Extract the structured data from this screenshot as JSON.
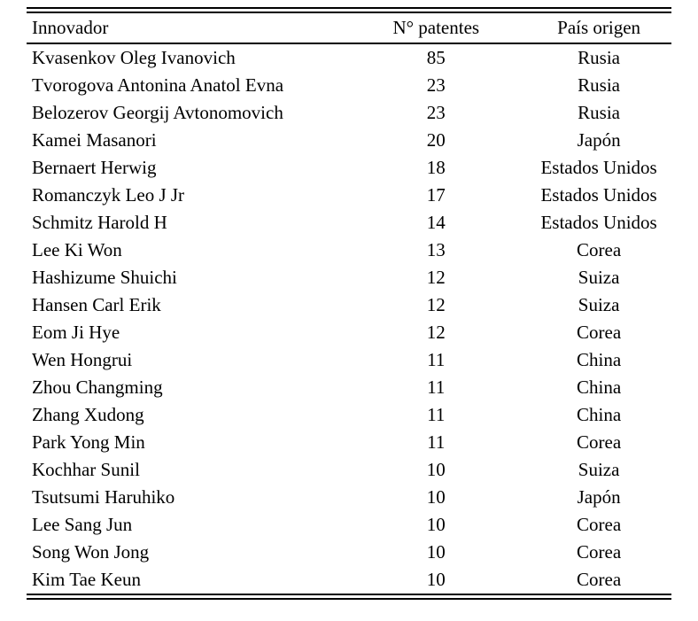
{
  "table": {
    "columns": [
      {
        "label": "Innovador",
        "align": "left"
      },
      {
        "label": "N° patentes",
        "align": "center"
      },
      {
        "label": "País origen",
        "align": "center"
      }
    ],
    "rows": [
      [
        "Kvasenkov Oleg Ivanovich",
        "85",
        "Rusia"
      ],
      [
        "Tvorogova Antonina Anatol Evna",
        "23",
        "Rusia"
      ],
      [
        "Belozerov Georgij Avtonomovich",
        "23",
        "Rusia"
      ],
      [
        "Kamei Masanori",
        "20",
        "Japón"
      ],
      [
        "Bernaert Herwig",
        "18",
        "Estados Unidos"
      ],
      [
        "Romanczyk Leo J Jr",
        "17",
        "Estados Unidos"
      ],
      [
        "Schmitz Harold H",
        "14",
        "Estados Unidos"
      ],
      [
        "Lee Ki Won",
        "13",
        "Corea"
      ],
      [
        "Hashizume Shuichi",
        "12",
        "Suiza"
      ],
      [
        "Hansen Carl Erik",
        "12",
        "Suiza"
      ],
      [
        "Eom Ji Hye",
        "12",
        "Corea"
      ],
      [
        "Wen Hongrui",
        "11",
        "China"
      ],
      [
        "Zhou Changming",
        "11",
        "China"
      ],
      [
        "Zhang Xudong",
        "11",
        "China"
      ],
      [
        "Park Yong Min",
        "11",
        "Corea"
      ],
      [
        "Kochhar Sunil",
        "10",
        "Suiza"
      ],
      [
        "Tsutsumi Haruhiko",
        "10",
        "Japón"
      ],
      [
        "Lee Sang Jun",
        "10",
        "Corea"
      ],
      [
        "Song Won Jong",
        "10",
        "Corea"
      ],
      [
        "Kim Tae Keun",
        "10",
        "Corea"
      ]
    ]
  },
  "colors": {
    "text": "#000000",
    "background": "#ffffff",
    "rule": "#000000"
  }
}
